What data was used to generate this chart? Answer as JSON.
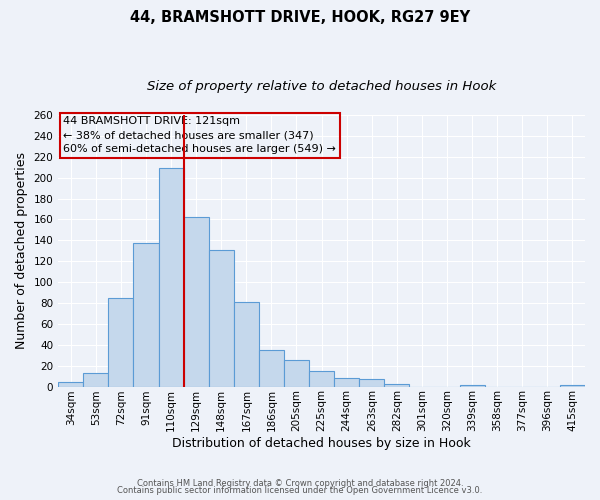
{
  "title": "44, BRAMSHOTT DRIVE, HOOK, RG27 9EY",
  "subtitle": "Size of property relative to detached houses in Hook",
  "xlabel": "Distribution of detached houses by size in Hook",
  "ylabel": "Number of detached properties",
  "categories": [
    "34sqm",
    "53sqm",
    "72sqm",
    "91sqm",
    "110sqm",
    "129sqm",
    "148sqm",
    "167sqm",
    "186sqm",
    "205sqm",
    "225sqm",
    "244sqm",
    "263sqm",
    "282sqm",
    "301sqm",
    "320sqm",
    "339sqm",
    "358sqm",
    "377sqm",
    "396sqm",
    "415sqm"
  ],
  "values": [
    4,
    13,
    85,
    137,
    209,
    162,
    131,
    81,
    35,
    25,
    15,
    8,
    7,
    2,
    0,
    0,
    1,
    0,
    0,
    0,
    1
  ],
  "bar_color": "#c5d8ec",
  "bar_edge_color": "#5b9bd5",
  "bar_edge_width": 0.8,
  "vline_color": "#cc0000",
  "annotation_box_color": "#cc0000",
  "annotation_line1": "44 BRAMSHOTT DRIVE: 121sqm",
  "annotation_line2": "← 38% of detached houses are smaller (347)",
  "annotation_line3": "60% of semi-detached houses are larger (549) →",
  "ylim": [
    0,
    260
  ],
  "yticks": [
    0,
    20,
    40,
    60,
    80,
    100,
    120,
    140,
    160,
    180,
    200,
    220,
    240,
    260
  ],
  "footer1": "Contains HM Land Registry data © Crown copyright and database right 2024.",
  "footer2": "Contains public sector information licensed under the Open Government Licence v3.0.",
  "bg_color": "#eef2f9",
  "grid_color": "#ffffff",
  "title_fontsize": 10.5,
  "subtitle_fontsize": 9.5,
  "axis_label_fontsize": 9,
  "tick_fontsize": 7.5
}
